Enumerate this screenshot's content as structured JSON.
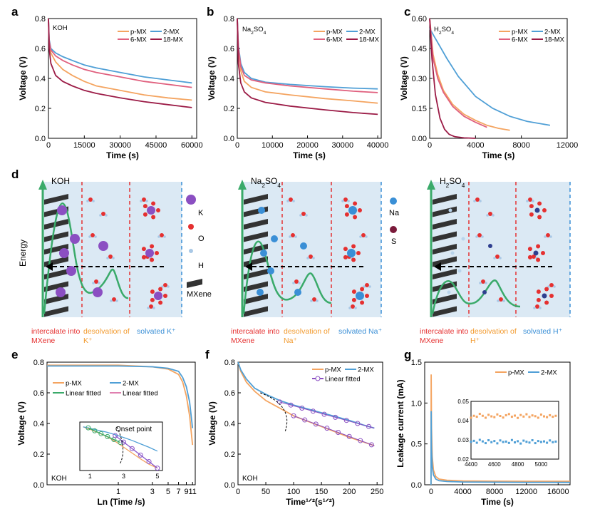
{
  "colors": {
    "pMX": "#f4a460",
    "twoMX": "#4f9fd6",
    "sixMX": "#e0607e",
    "eighteenMX": "#9b1b46",
    "green": "#3aaa6a",
    "purple": "#8b4fc2",
    "pink": "#e080b0",
    "violet": "#8a55c9",
    "red": "#e53030",
    "orange": "#f29a2e",
    "blue": "#3a8fd6",
    "navy": "#2f3f8f",
    "darkred": "#7a1a3a",
    "lightblue": "#dbe9f4"
  },
  "panels": {
    "a": {
      "letter": "a",
      "annotation": "KOH"
    },
    "b": {
      "letter": "b",
      "annotation": "Na2SO4"
    },
    "c": {
      "letter": "c",
      "annotation": "H2SO4"
    },
    "d": {
      "letter": "d",
      "y_label": "Energy",
      "sections": [
        {
          "title": "KOH",
          "cap1": "intercalate into",
          "cap1b": "MXene",
          "cap2": "desolvation of",
          "cap2b": "K⁺",
          "cap3": "solvated K⁺"
        },
        {
          "title": "Na2SO4",
          "cap1": "intercalate into",
          "cap1b": "MXene",
          "cap2": "desolvation of",
          "cap2b": "Na⁺",
          "cap3": "solvated Na⁺"
        },
        {
          "title": "H2SO4",
          "cap1": "intercalate into",
          "cap1b": "MXene",
          "cap2": "desolvation of",
          "cap2b": "H⁺",
          "cap3": "solvated H⁺"
        }
      ],
      "legend1": {
        "K": "K",
        "O": "O",
        "H": "H",
        "MXene": "MXene"
      },
      "legend2": {
        "Na": "Na",
        "S": "S"
      }
    },
    "e": {
      "letter": "e",
      "annotation": "KOH",
      "inset_label": "Onset point"
    },
    "f": {
      "letter": "f",
      "annotation": "KOH"
    },
    "g": {
      "letter": "g"
    }
  },
  "chart_data": [
    {
      "id": "a",
      "type": "line",
      "xlabel": "Time (s)",
      "ylabel": "Voltage (V)",
      "xlim": [
        0,
        62000
      ],
      "ylim": [
        0,
        0.8
      ],
      "xticks": [
        0,
        15000,
        30000,
        45000,
        60000
      ],
      "yticks": [
        0.0,
        0.2,
        0.4,
        0.6,
        0.8
      ],
      "legend": "top-right",
      "series": [
        {
          "name": "p-MX",
          "color_key": "pMX",
          "x": [
            0,
            300,
            1000,
            3000,
            6000,
            10000,
            15000,
            20000,
            30000,
            40000,
            50000,
            60000
          ],
          "y": [
            0.8,
            0.64,
            0.57,
            0.51,
            0.46,
            0.42,
            0.38,
            0.35,
            0.32,
            0.29,
            0.27,
            0.255
          ]
        },
        {
          "name": "2-MX",
          "color_key": "twoMX",
          "x": [
            0,
            300,
            1000,
            3000,
            6000,
            10000,
            15000,
            20000,
            30000,
            40000,
            50000,
            60000
          ],
          "y": [
            0.8,
            0.66,
            0.6,
            0.57,
            0.545,
            0.52,
            0.49,
            0.47,
            0.44,
            0.41,
            0.39,
            0.37
          ]
        },
        {
          "name": "6-MX",
          "color_key": "sixMX",
          "x": [
            0,
            300,
            1000,
            3000,
            6000,
            10000,
            15000,
            20000,
            30000,
            40000,
            50000,
            60000
          ],
          "y": [
            0.8,
            0.65,
            0.59,
            0.55,
            0.52,
            0.49,
            0.46,
            0.44,
            0.41,
            0.38,
            0.36,
            0.34
          ]
        },
        {
          "name": "18-MX",
          "color_key": "eighteenMX",
          "x": [
            0,
            300,
            1000,
            3000,
            6000,
            10000,
            15000,
            20000,
            30000,
            40000,
            50000,
            60000
          ],
          "y": [
            0.8,
            0.6,
            0.5,
            0.42,
            0.38,
            0.35,
            0.32,
            0.3,
            0.27,
            0.245,
            0.225,
            0.205
          ]
        }
      ]
    },
    {
      "id": "b",
      "type": "line",
      "xlabel": "Time (s)",
      "ylabel": "Voltage (V)",
      "xlim": [
        0,
        41000
      ],
      "ylim": [
        0,
        0.8
      ],
      "xticks": [
        0,
        10000,
        20000,
        30000,
        40000
      ],
      "yticks": [
        0.0,
        0.2,
        0.4,
        0.6,
        0.8
      ],
      "legend": "top-right",
      "series": [
        {
          "name": "p-MX",
          "color_key": "pMX",
          "x": [
            0,
            300,
            1000,
            2000,
            4000,
            8000,
            15000,
            25000,
            33000,
            40000
          ],
          "y": [
            0.8,
            0.6,
            0.45,
            0.38,
            0.34,
            0.31,
            0.29,
            0.265,
            0.25,
            0.235
          ]
        },
        {
          "name": "2-MX",
          "color_key": "twoMX",
          "x": [
            0,
            300,
            1000,
            2000,
            4000,
            8000,
            15000,
            25000,
            33000,
            40000
          ],
          "y": [
            0.8,
            0.62,
            0.5,
            0.44,
            0.4,
            0.375,
            0.36,
            0.345,
            0.335,
            0.33
          ]
        },
        {
          "name": "6-MX",
          "color_key": "sixMX",
          "x": [
            0,
            300,
            1000,
            2000,
            4000,
            8000,
            15000,
            25000,
            33000,
            40000
          ],
          "y": [
            0.8,
            0.61,
            0.48,
            0.42,
            0.39,
            0.37,
            0.35,
            0.33,
            0.315,
            0.305
          ]
        },
        {
          "name": "18-MX",
          "color_key": "eighteenMX",
          "x": [
            0,
            300,
            1000,
            2000,
            4000,
            8000,
            15000,
            25000,
            33000,
            40000
          ],
          "y": [
            0.8,
            0.5,
            0.37,
            0.31,
            0.27,
            0.24,
            0.215,
            0.19,
            0.172,
            0.16
          ]
        }
      ]
    },
    {
      "id": "c",
      "type": "line",
      "xlabel": "Time (s)",
      "ylabel": "Voltage (V)",
      "xlim": [
        0,
        12000
      ],
      "ylim": [
        0,
        0.6
      ],
      "xticks": [
        0,
        4000,
        8000,
        12000
      ],
      "yticks": [
        0.0,
        0.15,
        0.3,
        0.45,
        0.6
      ],
      "legend": "top-right",
      "series": [
        {
          "name": "p-MX",
          "color_key": "pMX",
          "x": [
            0,
            300,
            700,
            1200,
            2000,
            3000,
            4000,
            5000,
            6000,
            7000
          ],
          "y": [
            0.6,
            0.42,
            0.32,
            0.24,
            0.17,
            0.12,
            0.09,
            0.065,
            0.05,
            0.04
          ]
        },
        {
          "name": "2-MX",
          "color_key": "twoMX",
          "x": [
            0,
            300,
            800,
            1500,
            2500,
            4000,
            5500,
            7000,
            8500,
            10500
          ],
          "y": [
            0.55,
            0.52,
            0.47,
            0.4,
            0.31,
            0.21,
            0.15,
            0.11,
            0.085,
            0.065
          ]
        },
        {
          "name": "6-MX",
          "color_key": "sixMX",
          "x": [
            0,
            300,
            700,
            1200,
            2000,
            3000,
            4000,
            5000
          ],
          "y": [
            0.6,
            0.4,
            0.3,
            0.23,
            0.16,
            0.11,
            0.08,
            0.055
          ]
        },
        {
          "name": "18-MX",
          "color_key": "eighteenMX",
          "x": [
            0,
            200,
            500,
            900,
            1300,
            1700,
            2200,
            3000,
            4000
          ],
          "y": [
            0.6,
            0.4,
            0.22,
            0.1,
            0.045,
            0.02,
            0.008,
            0.002,
            0.0
          ]
        }
      ]
    },
    {
      "id": "e",
      "type": "line",
      "xlabel": "Ln (Time /s)",
      "ylabel": "Voltage (V)",
      "xscale": "log",
      "xlim": [
        0.1,
        12
      ],
      "ylim": [
        0,
        0.8
      ],
      "xticks": [
        1,
        3,
        5,
        7,
        9,
        11
      ],
      "yticks": [
        0.0,
        0.2,
        0.4,
        0.6,
        0.8
      ],
      "legend": "top-left",
      "series": [
        {
          "name": "p-MX",
          "color_key": "pMX",
          "x": [
            0.1,
            1,
            3,
            5,
            7,
            8,
            9,
            10,
            11
          ],
          "y": [
            0.78,
            0.78,
            0.77,
            0.755,
            0.72,
            0.67,
            0.58,
            0.45,
            0.26
          ]
        },
        {
          "name": "2-MX",
          "color_key": "twoMX",
          "x": [
            0.1,
            1,
            3,
            5,
            7,
            8,
            9,
            10,
            11
          ],
          "y": [
            0.775,
            0.775,
            0.77,
            0.76,
            0.74,
            0.7,
            0.64,
            0.54,
            0.37
          ]
        },
        {
          "name": "Linear fitted",
          "color_key": "green",
          "x": [],
          "y": []
        },
        {
          "name": "Linear fitted",
          "color_key": "pink",
          "x": [],
          "y": []
        }
      ],
      "inset": {
        "xticks": [
          1,
          3,
          5
        ],
        "series": [
          {
            "color_key": "pMX",
            "x": [
              0.6,
              1,
              1.5,
              2,
              2.5,
              3,
              3.5,
              4,
              4.5,
              5
            ],
            "y": [
              0.9,
              0.85,
              0.78,
              0.7,
              0.6,
              0.48,
              0.36,
              0.24,
              0.13,
              0.05
            ]
          },
          {
            "color_key": "twoMX",
            "x": [
              0.6,
              1,
              1.5,
              2,
              2.5,
              3,
              3.5,
              4,
              4.5,
              5
            ],
            "y": [
              0.9,
              0.87,
              0.83,
              0.79,
              0.74,
              0.68,
              0.62,
              0.55,
              0.48,
              0.4
            ]
          },
          {
            "color_key": "green",
            "x": [
              0.9,
              2.8
            ],
            "y": [
              0.88,
              0.58
            ]
          },
          {
            "color_key": "violet",
            "x": [
              2.5,
              5
            ],
            "y": [
              0.72,
              0.05
            ]
          }
        ]
      }
    },
    {
      "id": "f",
      "type": "line",
      "xlabel": "Time¹ᐟ²(s¹ᐟ²)",
      "ylabel": "Voltage (V)",
      "xlim": [
        0,
        260
      ],
      "ylim": [
        0,
        0.8
      ],
      "xticks": [
        0,
        50,
        100,
        150,
        200,
        250
      ],
      "yticks": [
        0.0,
        0.2,
        0.4,
        0.6,
        0.8
      ],
      "legend": "top-right",
      "series": [
        {
          "name": "p-MX",
          "color_key": "pMX",
          "x": [
            0,
            5,
            15,
            30,
            50,
            75,
            100,
            125,
            150,
            175,
            200,
            225,
            245
          ],
          "y": [
            0.8,
            0.74,
            0.67,
            0.61,
            0.55,
            0.5,
            0.45,
            0.415,
            0.38,
            0.345,
            0.31,
            0.28,
            0.255
          ]
        },
        {
          "name": "2-MX",
          "color_key": "twoMX",
          "x": [
            0,
            5,
            15,
            30,
            50,
            75,
            100,
            125,
            150,
            175,
            200,
            225,
            245
          ],
          "y": [
            0.8,
            0.75,
            0.69,
            0.63,
            0.59,
            0.55,
            0.52,
            0.495,
            0.47,
            0.445,
            0.42,
            0.39,
            0.37
          ]
        },
        {
          "name": "Linear fitted",
          "color_key": "purple",
          "x": [],
          "y": []
        }
      ],
      "fit_lines": [
        {
          "x": [
            75,
            245
          ],
          "y": [
            0.54,
            0.37
          ]
        },
        {
          "x": [
            100,
            245
          ],
          "y": [
            0.45,
            0.255
          ]
        }
      ],
      "fit_markers": [
        {
          "x": [
            75,
            95,
            115,
            135,
            155,
            175,
            195,
            215,
            235
          ],
          "y": [
            0.54,
            0.52,
            0.5,
            0.48,
            0.46,
            0.44,
            0.42,
            0.4,
            0.38
          ]
        },
        {
          "x": [
            100,
            120,
            140,
            160,
            180,
            200,
            220,
            240
          ],
          "y": [
            0.45,
            0.423,
            0.396,
            0.369,
            0.342,
            0.315,
            0.288,
            0.261
          ]
        }
      ]
    },
    {
      "id": "g",
      "type": "line",
      "xlabel": "Time (s)",
      "ylabel": "Leakage current (mA)",
      "xlim": [
        -800,
        17500
      ],
      "ylim": [
        0,
        1.5
      ],
      "xticks": [
        0,
        4000,
        8000,
        12000,
        16000
      ],
      "yticks": [
        0.0,
        0.5,
        1.0,
        1.5
      ],
      "legend": "top-right",
      "series": [
        {
          "name": "p-MX",
          "color_key": "pMX",
          "x": [
            0,
            20,
            60,
            150,
            300,
            600,
            1000,
            2000,
            4000,
            8000,
            12000,
            17500
          ],
          "y": [
            0.0,
            1.35,
            0.7,
            0.35,
            0.18,
            0.1,
            0.07,
            0.055,
            0.047,
            0.044,
            0.043,
            0.042
          ]
        },
        {
          "name": "2-MX",
          "color_key": "twoMX",
          "x": [
            0,
            20,
            60,
            150,
            300,
            600,
            1000,
            2000,
            4000,
            8000,
            12000,
            17500
          ],
          "y": [
            0.0,
            0.9,
            0.45,
            0.22,
            0.12,
            0.07,
            0.05,
            0.04,
            0.034,
            0.031,
            0.03,
            0.029
          ]
        }
      ],
      "inset": {
        "xlim": [
          4400,
          5150
        ],
        "ylim": [
          0.02,
          0.05
        ],
        "xticks": [
          4400,
          4600,
          4800,
          5000
        ],
        "yticks": [
          0.02,
          0.03,
          0.04,
          0.05
        ],
        "series": [
          {
            "color_key": "pMX",
            "x": [
              4400,
              4425,
              4450,
              4475,
              4500,
              4525,
              4550,
              4575,
              4600,
              4625,
              4650,
              4675,
              4700,
              4725,
              4750,
              4775,
              4800,
              4825,
              4850,
              4875,
              4900,
              4925,
              4950,
              4975,
              5000,
              5025,
              5050,
              5075,
              5100,
              5125
            ],
            "y": [
              0.0415,
              0.0425,
              0.042,
              0.0435,
              0.0425,
              0.0415,
              0.043,
              0.0422,
              0.0418,
              0.0432,
              0.0424,
              0.0416,
              0.0428,
              0.0434,
              0.042,
              0.0426,
              0.0414,
              0.0429,
              0.0421,
              0.0433,
              0.0419,
              0.0427,
              0.0423,
              0.0415,
              0.0431,
              0.0422,
              0.0418,
              0.0428,
              0.042,
              0.0425
            ]
          },
          {
            "color_key": "twoMX",
            "x": [
              4400,
              4425,
              4450,
              4475,
              4500,
              4525,
              4550,
              4575,
              4600,
              4625,
              4650,
              4675,
              4700,
              4725,
              4750,
              4775,
              4800,
              4825,
              4850,
              4875,
              4900,
              4925,
              4950,
              4975,
              5000,
              5025,
              5050,
              5075,
              5100,
              5125
            ],
            "y": [
              0.029,
              0.0295,
              0.0285,
              0.03,
              0.0292,
              0.0283,
              0.0298,
              0.0288,
              0.0294,
              0.0282,
              0.0297,
              0.0289,
              0.0291,
              0.0284,
              0.0299,
              0.0287,
              0.0293,
              0.0281,
              0.0296,
              0.029,
              0.0286,
              0.0298,
              0.0283,
              0.0294,
              0.0289,
              0.0292,
              0.0285,
              0.0297,
              0.0288,
              0.0291
            ]
          }
        ]
      }
    }
  ]
}
